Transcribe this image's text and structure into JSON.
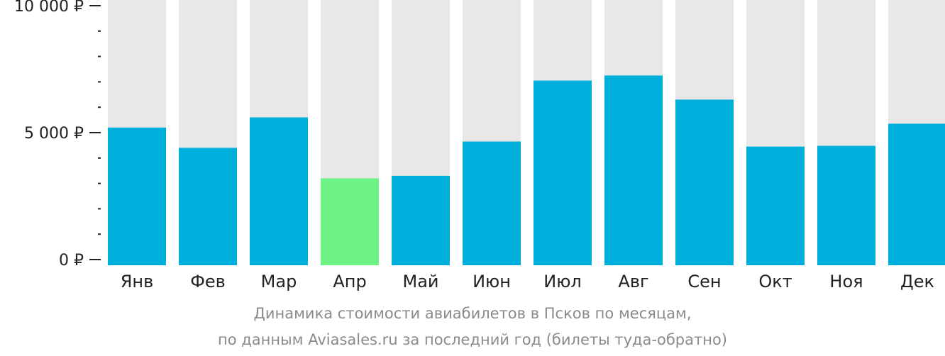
{
  "chart_data": {
    "type": "bar",
    "categories": [
      "Янв",
      "Фев",
      "Мар",
      "Апр",
      "Май",
      "Июн",
      "Июл",
      "Авг",
      "Сен",
      "Окт",
      "Ноя",
      "Дек"
    ],
    "values": [
      5200,
      4400,
      5600,
      3200,
      3300,
      4650,
      7050,
      7250,
      6300,
      4450,
      4480,
      5350
    ],
    "ylim": [
      0,
      10000
    ],
    "yticks": [
      {
        "value": 0,
        "label": "0 ₽"
      },
      {
        "value": 5000,
        "label": "5 000 ₽"
      },
      {
        "value": 10000,
        "label": "10 000 ₽"
      }
    ],
    "minor_tick_step": 1000,
    "highlight_category": "Апр",
    "colors": {
      "bar": "#00b0dc",
      "highlight": "#6cf285",
      "track": "#e8e8e8",
      "axis": "#222222"
    },
    "grid": false,
    "legend": "none"
  },
  "caption": {
    "line1": "Динамика стоимости авиабилетов в Псков по месяцам,",
    "line2": "по данным Aviasales.ru за последний год (билеты туда-обратно)"
  }
}
